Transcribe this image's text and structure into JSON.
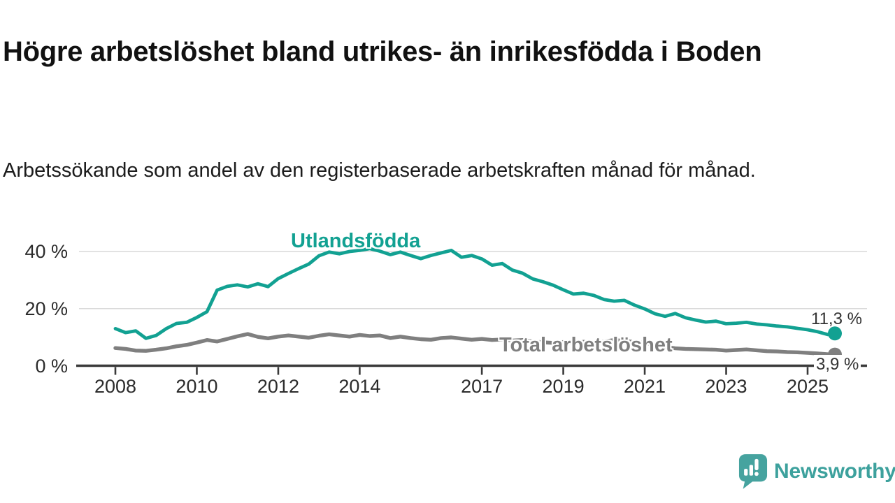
{
  "header": {
    "title": "Högre arbetslöshet bland utrikes- än inrikesfödda i Boden",
    "subtitle": "Arbetssökande som andel av den registerbaserade arbetskraften månad för månad."
  },
  "chart_data": {
    "type": "line",
    "title": "Högre arbetslöshet bland utrikes- än inrikesfödda i Boden",
    "xlabel": "",
    "ylabel": "",
    "x_unit": "year (monthly series)",
    "xlim": [
      2008,
      2025.75
    ],
    "ylim": [
      0,
      45
    ],
    "grid": "horizontal",
    "xticks": [
      2008,
      2010,
      2012,
      2014,
      2017,
      2019,
      2021,
      2023,
      2025
    ],
    "yticks": [
      {
        "value": 0,
        "label": "0 %"
      },
      {
        "value": 20,
        "label": "20 %"
      },
      {
        "value": 40,
        "label": "40 %"
      }
    ],
    "x": [
      2008,
      2008.25,
      2008.5,
      2008.75,
      2009,
      2009.25,
      2009.5,
      2009.75,
      2010,
      2010.25,
      2010.5,
      2010.75,
      2011,
      2011.25,
      2011.5,
      2011.75,
      2012,
      2012.25,
      2012.5,
      2012.75,
      2013,
      2013.25,
      2013.5,
      2013.75,
      2014,
      2014.25,
      2014.5,
      2014.75,
      2015,
      2015.25,
      2015.5,
      2015.75,
      2016,
      2016.25,
      2016.5,
      2016.75,
      2017,
      2017.25,
      2017.5,
      2017.75,
      2018,
      2018.25,
      2018.5,
      2018.75,
      2019,
      2019.25,
      2019.5,
      2019.75,
      2020,
      2020.25,
      2020.5,
      2020.75,
      2021,
      2021.25,
      2021.5,
      2021.75,
      2022,
      2022.25,
      2022.5,
      2022.75,
      2023,
      2023.25,
      2023.5,
      2023.75,
      2024,
      2024.25,
      2024.5,
      2024.75,
      2025,
      2025.25,
      2025.5,
      2025.67
    ],
    "series": [
      {
        "id": "utlandsfodda",
        "name": "Utlandsfödda",
        "color": "#12a192",
        "end_label": "11,3 %",
        "end_value": 11.3,
        "values": [
          13.0,
          11.6,
          12.2,
          9.6,
          10.6,
          13.0,
          14.8,
          15.2,
          16.9,
          18.9,
          26.5,
          27.8,
          28.3,
          27.6,
          28.7,
          27.7,
          30.5,
          32.3,
          34.0,
          35.6,
          38.5,
          39.8,
          39.2,
          40.0,
          40.4,
          41.0,
          40.1,
          38.9,
          39.8,
          38.6,
          37.5,
          38.6,
          39.5,
          40.4,
          38.0,
          38.6,
          37.4,
          35.2,
          35.8,
          33.5,
          32.4,
          30.4,
          29.4,
          28.2,
          26.6,
          25.1,
          25.4,
          24.6,
          23.2,
          22.6,
          22.9,
          21.2,
          19.9,
          18.2,
          17.3,
          18.3,
          16.8,
          16.0,
          15.3,
          15.6,
          14.7,
          14.9,
          15.2,
          14.6,
          14.3,
          13.9,
          13.6,
          13.1,
          12.6,
          11.9,
          10.9,
          11.3
        ]
      },
      {
        "id": "total",
        "name": "Total arbetslöshet",
        "color": "#7f7f7f",
        "end_label": "3,9 %",
        "end_value": 3.9,
        "values": [
          6.2,
          5.9,
          5.3,
          5.2,
          5.6,
          6.1,
          6.8,
          7.3,
          8.1,
          9.0,
          8.5,
          9.4,
          10.3,
          11.1,
          10.1,
          9.6,
          10.2,
          10.6,
          10.2,
          9.8,
          10.5,
          11.0,
          10.6,
          10.2,
          10.8,
          10.4,
          10.6,
          9.7,
          10.2,
          9.7,
          9.3,
          9.1,
          9.7,
          9.9,
          9.5,
          9.1,
          9.4,
          9.0,
          9.2,
          8.8,
          9.0,
          8.5,
          8.2,
          8.0,
          8.3,
          8.0,
          8.4,
          8.1,
          8.5,
          9.0,
          8.7,
          8.3,
          8.0,
          7.4,
          6.6,
          6.1,
          5.9,
          5.8,
          5.7,
          5.6,
          5.3,
          5.5,
          5.7,
          5.4,
          5.1,
          5.0,
          4.8,
          4.7,
          4.5,
          4.3,
          4.0,
          3.9
        ]
      }
    ]
  },
  "footer": {
    "brand": "Newsworthy",
    "brand_color": "#3da19d",
    "logo_icon": "speech-bubble-bar-chart-icon"
  }
}
